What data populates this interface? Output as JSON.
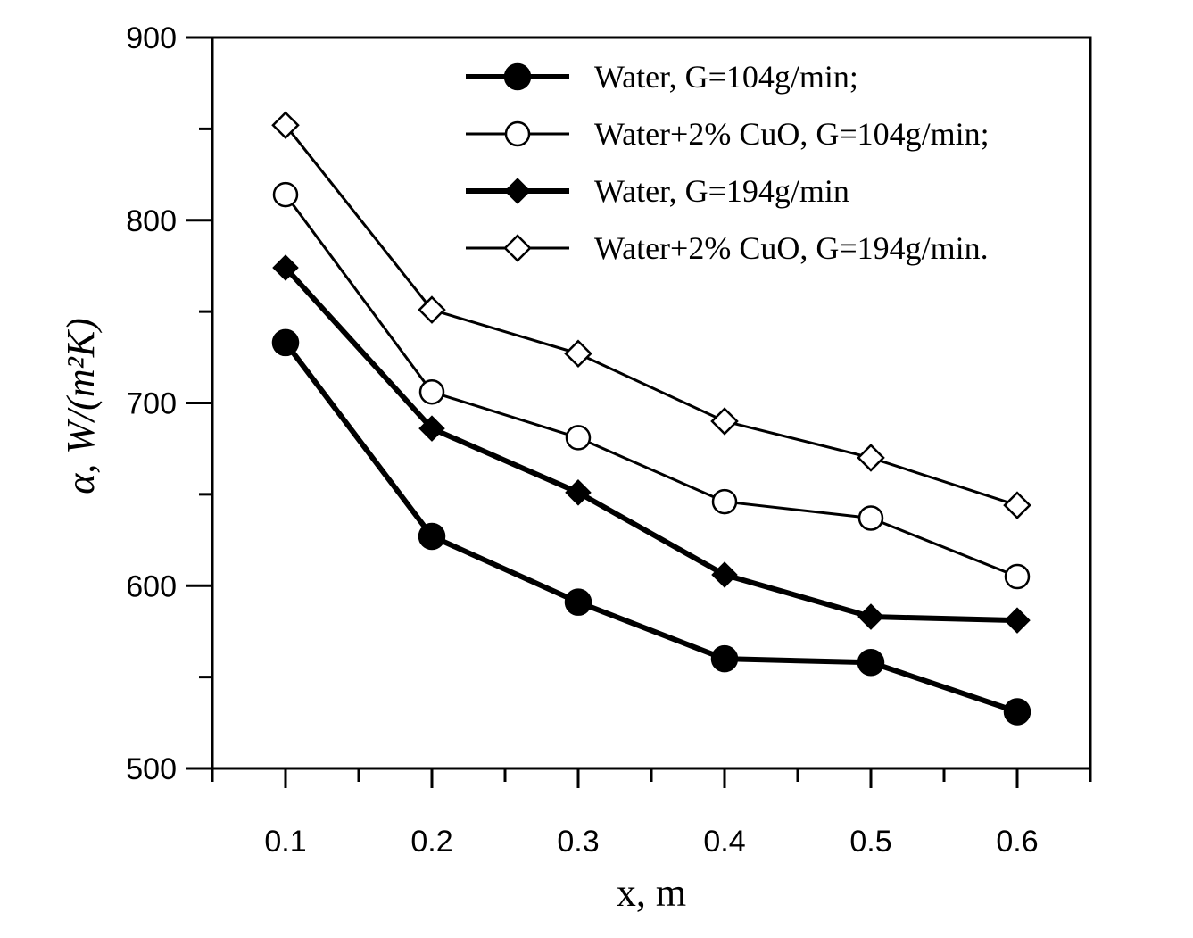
{
  "chart_data": {
    "type": "line",
    "x_label": "x, m",
    "y_label": "α, W/(m²K)",
    "x": [
      0.1,
      0.2,
      0.3,
      0.4,
      0.5,
      0.6
    ],
    "xlim": [
      0.05,
      0.65
    ],
    "xticks": [
      0.1,
      0.2,
      0.3,
      0.4,
      0.5,
      0.6
    ],
    "ylim": [
      500,
      900
    ],
    "yticks": [
      500,
      600,
      700,
      800,
      900
    ],
    "grid": false,
    "legend": "upper right",
    "series": [
      {
        "name": "Water, G=104g/min;",
        "color": "#000000",
        "marker": "circle",
        "filled": true,
        "line_width": 6,
        "values": [
          733,
          627,
          591,
          560,
          558,
          531
        ]
      },
      {
        "name": "Water+2% CuO, G=104g/min;",
        "color": "#000000",
        "marker": "circle",
        "filled": false,
        "line_width": 3,
        "values": [
          814,
          706,
          681,
          646,
          637,
          605
        ]
      },
      {
        "name": "Water, G=194g/min",
        "color": "#000000",
        "marker": "diamond",
        "filled": true,
        "line_width": 6,
        "values": [
          774,
          686,
          651,
          606,
          583,
          581
        ]
      },
      {
        "name": "Water+2% CuO, G=194g/min.",
        "color": "#000000",
        "marker": "diamond",
        "filled": false,
        "line_width": 3,
        "values": [
          852,
          751,
          727,
          690,
          670,
          644
        ]
      }
    ]
  }
}
